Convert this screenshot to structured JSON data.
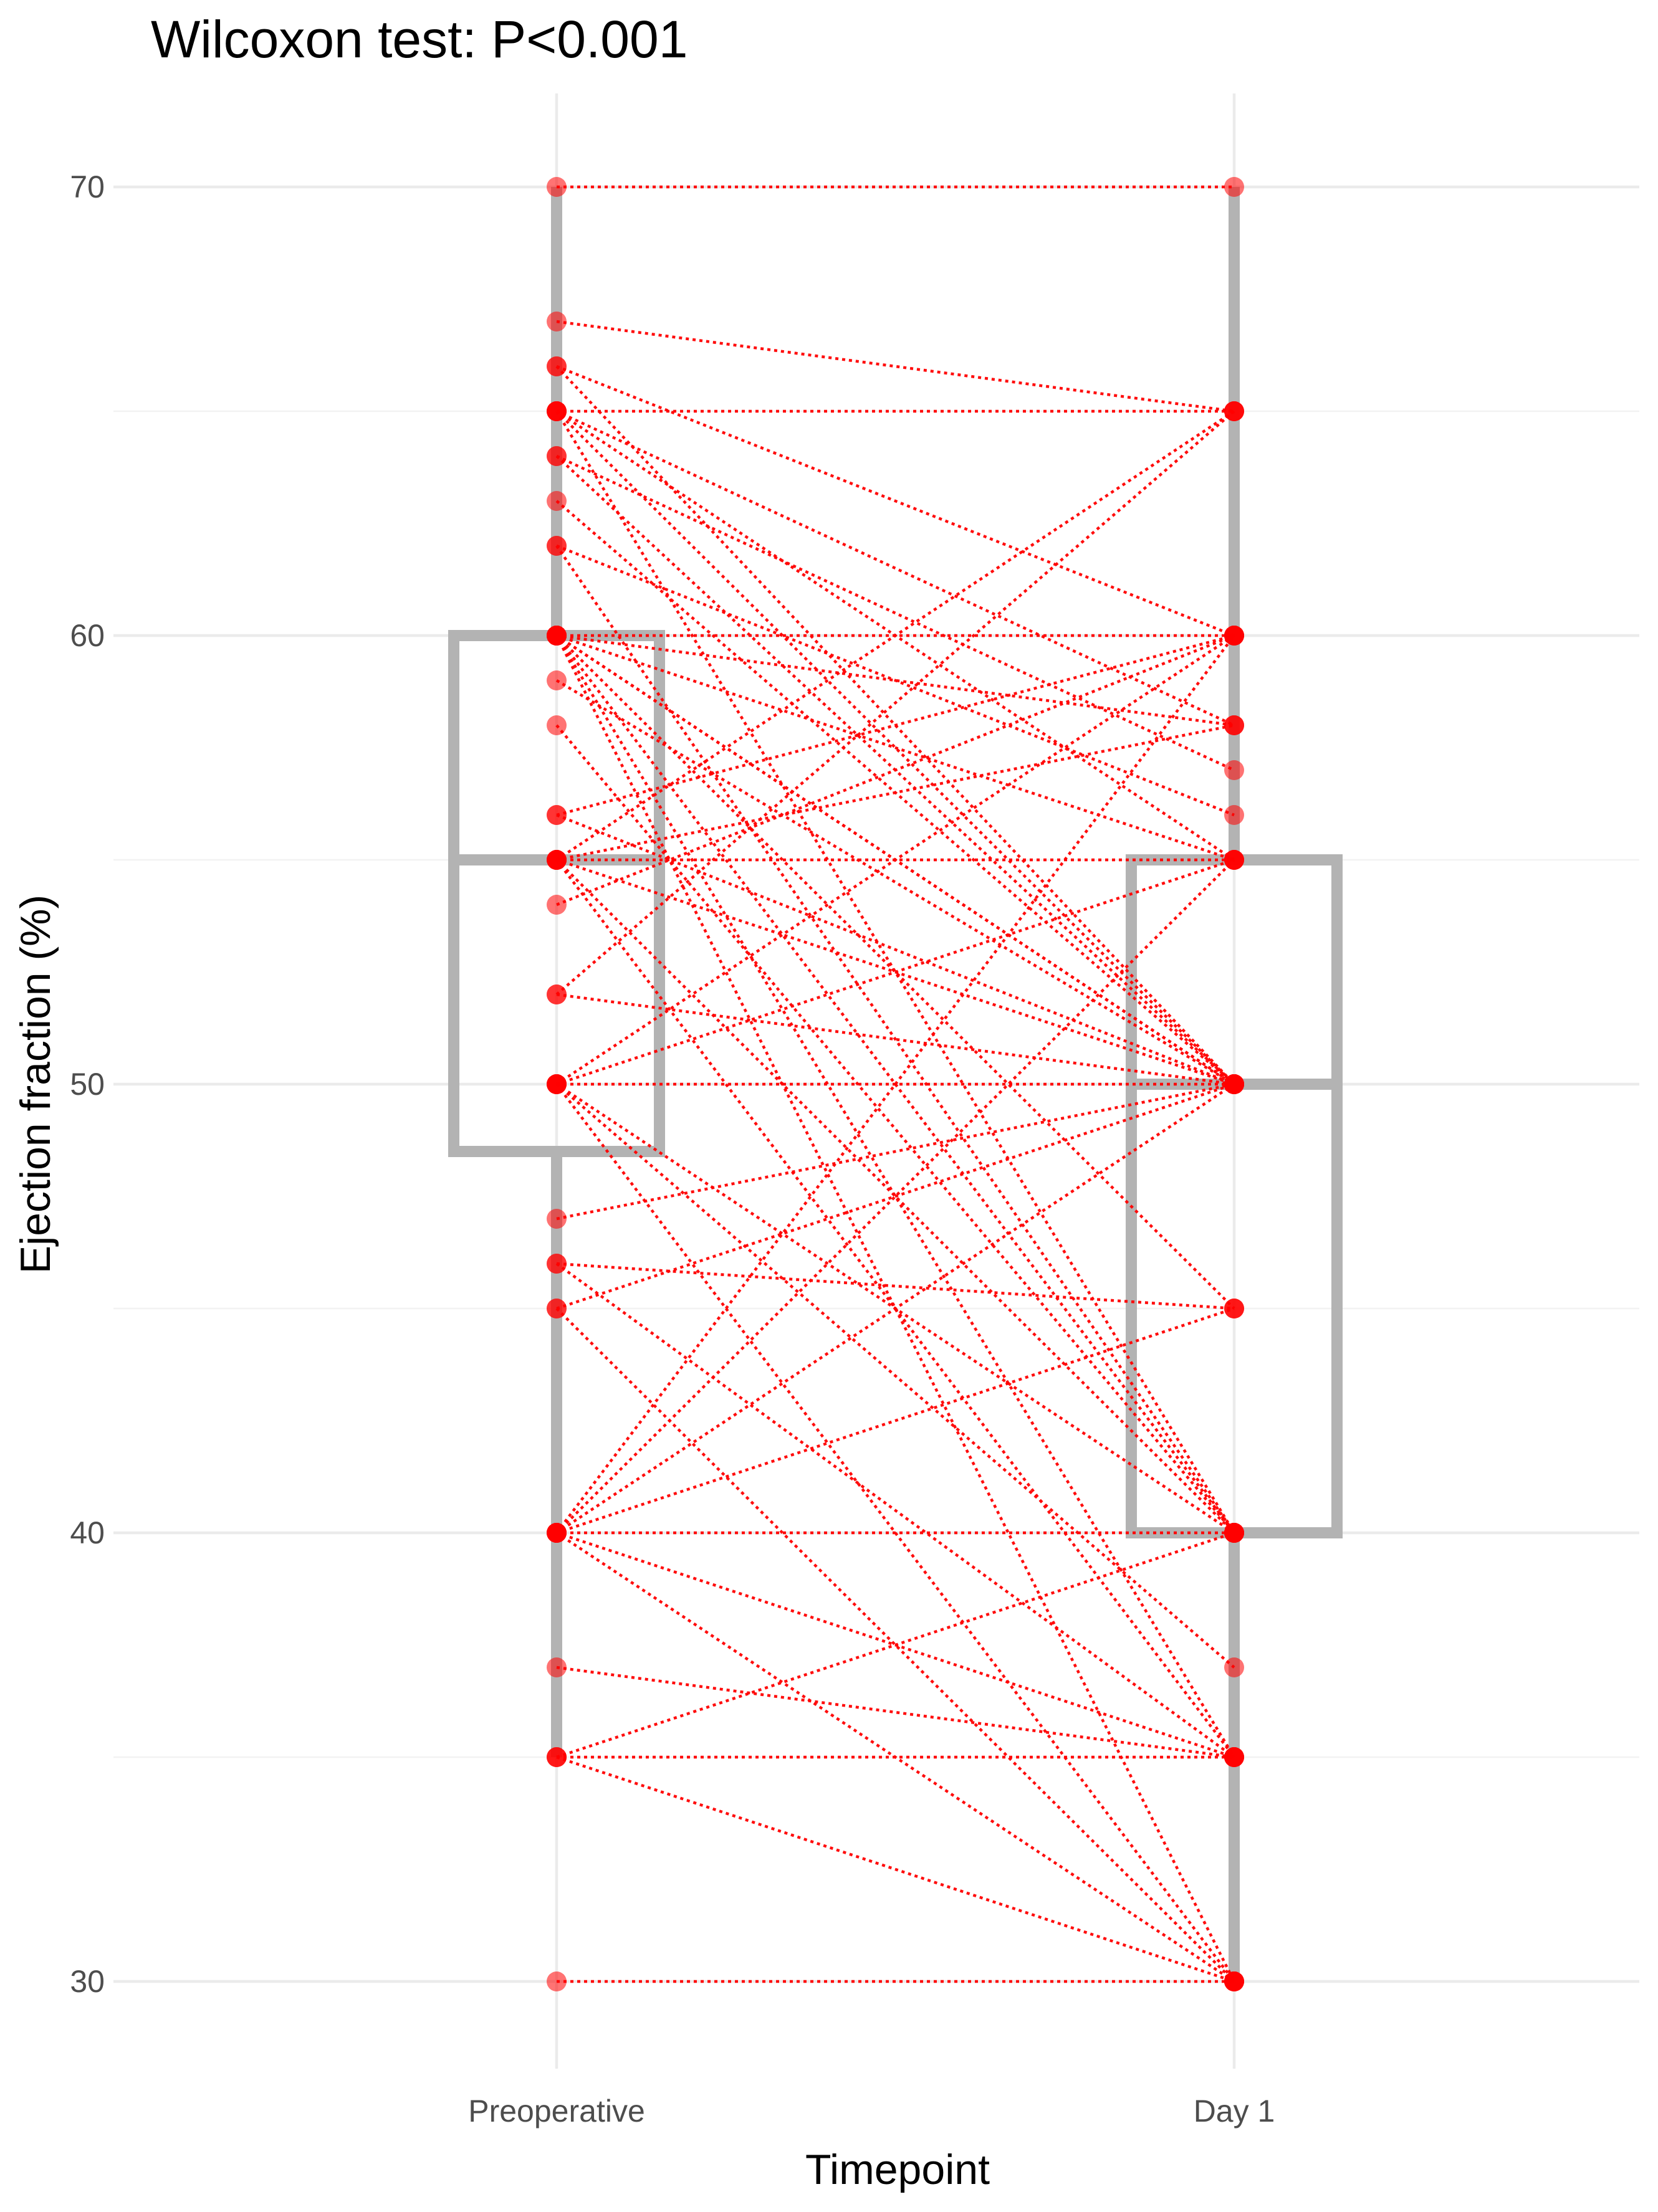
{
  "chart_data": {
    "type": "box",
    "title": "Wilcoxon test: P<0.001",
    "xlabel": "Timepoint",
    "ylabel": "Ejection fraction (%)",
    "categories": [
      "Preoperative",
      "Day 1"
    ],
    "ylim": [
      28,
      72
    ],
    "y_ticks": [
      30,
      40,
      50,
      60,
      70
    ],
    "grid": true,
    "colors": {
      "box": "#b3b3b3",
      "points": "#ff0000",
      "lines": "#ff0000",
      "grid": "#ebebeb"
    },
    "boxes": [
      {
        "category": "Preoperative",
        "min": 35,
        "q1": 48.5,
        "median": 55,
        "q3": 60,
        "max": 70
      },
      {
        "category": "Day 1",
        "min": 30,
        "q1": 40,
        "median": 50,
        "q3": 55,
        "max": 70
      }
    ],
    "outliers": [
      {
        "category": "Preoperative",
        "value": 30
      }
    ],
    "pairs": [
      [
        70,
        70
      ],
      [
        67,
        65
      ],
      [
        66,
        60
      ],
      [
        66,
        50
      ],
      [
        65,
        65
      ],
      [
        65,
        58
      ],
      [
        65,
        55
      ],
      [
        65,
        50
      ],
      [
        65,
        40
      ],
      [
        64,
        57
      ],
      [
        64,
        50
      ],
      [
        63,
        50
      ],
      [
        62,
        56
      ],
      [
        62,
        40
      ],
      [
        60,
        60
      ],
      [
        60,
        58
      ],
      [
        60,
        55
      ],
      [
        60,
        50
      ],
      [
        60,
        50
      ],
      [
        60,
        45
      ],
      [
        60,
        40
      ],
      [
        60,
        35
      ],
      [
        60,
        30
      ],
      [
        59,
        50
      ],
      [
        58,
        40
      ],
      [
        56,
        60
      ],
      [
        56,
        50
      ],
      [
        55,
        65
      ],
      [
        55,
        58
      ],
      [
        55,
        55
      ],
      [
        55,
        50
      ],
      [
        55,
        40
      ],
      [
        55,
        35
      ],
      [
        54,
        60
      ],
      [
        52,
        65
      ],
      [
        52,
        50
      ],
      [
        50,
        60
      ],
      [
        50,
        55
      ],
      [
        50,
        50
      ],
      [
        50,
        40
      ],
      [
        50,
        37
      ],
      [
        50,
        30
      ],
      [
        47,
        50
      ],
      [
        46,
        45
      ],
      [
        46,
        35
      ],
      [
        45,
        50
      ],
      [
        45,
        30
      ],
      [
        40,
        60
      ],
      [
        40,
        55
      ],
      [
        40,
        50
      ],
      [
        40,
        45
      ],
      [
        40,
        40
      ],
      [
        40,
        35
      ],
      [
        40,
        30
      ],
      [
        37,
        35
      ],
      [
        35,
        40
      ],
      [
        35,
        35
      ],
      [
        35,
        30
      ],
      [
        30,
        30
      ]
    ]
  }
}
